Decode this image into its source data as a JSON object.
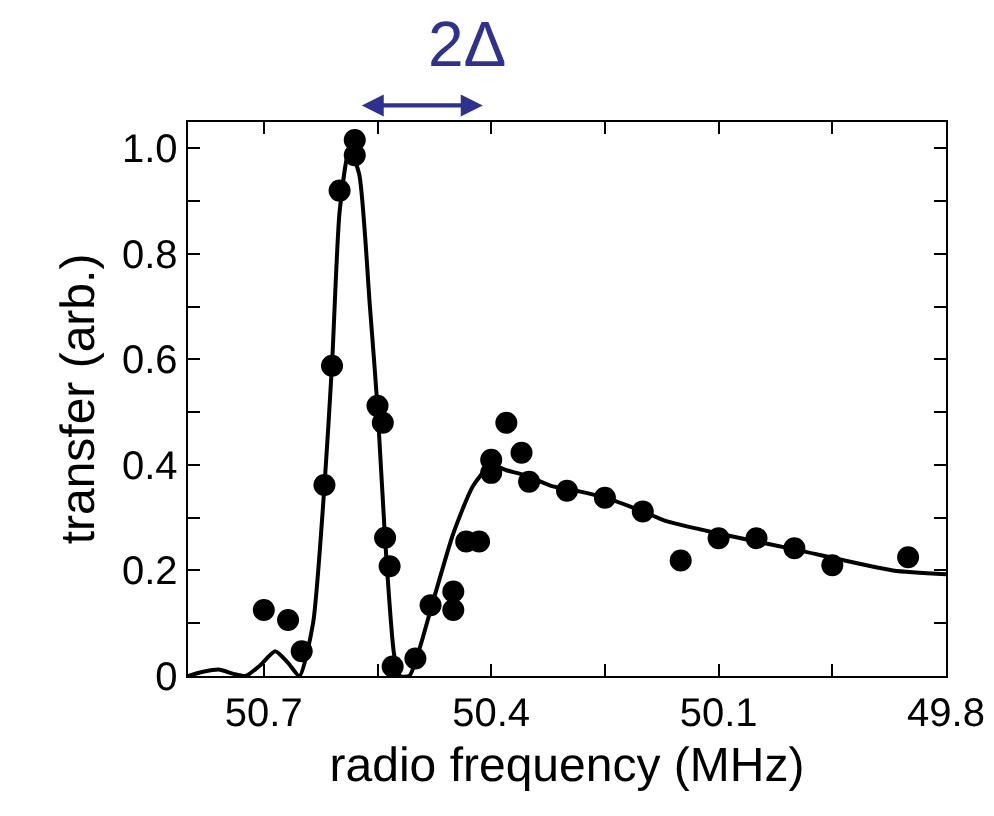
{
  "chart_data": {
    "type": "scatter",
    "xlabel": "radio frequency (MHz)",
    "ylabel": "transfer (arb.)",
    "annotations": [
      "2Δ"
    ],
    "xlim": [
      50.8,
      49.8
    ],
    "xticks": [
      50.7,
      {
        "value": 50.55,
        "label": null
      },
      50.4,
      {
        "value": 50.25,
        "label": null
      },
      50.1,
      {
        "value": 49.95,
        "label": null
      },
      49.8
    ],
    "ylim": [
      0,
      1.05
    ],
    "yticks": [
      0,
      {
        "value": 0.1,
        "label": null
      },
      0.2,
      {
        "value": 0.3,
        "label": null
      },
      0.4,
      {
        "value": 0.5,
        "label": null
      },
      0.6,
      {
        "value": 0.7,
        "label": null
      },
      0.8,
      {
        "value": 0.9,
        "label": null
      },
      {
        "value": 1.0,
        "label": "1.0"
      }
    ],
    "grid": false,
    "series": [
      {
        "color": "#000000",
        "marker": "circle",
        "x": [
          50.7,
          50.668,
          50.65,
          50.62,
          50.61,
          50.6,
          50.58,
          50.58,
          50.55,
          50.543,
          50.54,
          50.534,
          50.53,
          50.5,
          50.48,
          50.45,
          50.45,
          50.433,
          50.416,
          50.4,
          50.4,
          50.38,
          50.36,
          50.35,
          50.3,
          50.25,
          50.2,
          50.15,
          50.1,
          50.05,
          50.0,
          49.95,
          49.85
        ],
        "values": [
          0.125,
          0.106,
          0.047,
          0.362,
          0.588,
          0.92,
          1.016,
          0.987,
          0.512,
          0.48,
          0.262,
          0.208,
          0.018,
          0.033,
          0.134,
          0.16,
          0.125,
          0.255,
          0.255,
          0.41,
          0.385,
          0.48,
          0.423,
          0.368,
          0.351,
          0.338,
          0.312,
          0.219,
          0.261,
          0.261,
          0.242,
          0.21,
          0.225
        ]
      },
      {
        "type": "line",
        "color": "#000000",
        "marker": "none",
        "line_style": "solid",
        "x": [
          50.8,
          50.78,
          50.758,
          50.74,
          50.724,
          50.705,
          50.685,
          50.668,
          50.653,
          50.635,
          50.62,
          50.61,
          50.6,
          50.587,
          50.574,
          50.56,
          50.55,
          50.54,
          50.528,
          50.52,
          50.508,
          50.495,
          50.477,
          50.45,
          50.424,
          50.4,
          50.38,
          50.354,
          50.32,
          50.284,
          50.25,
          50.2,
          50.17,
          50.1,
          50.0,
          49.87,
          49.8
        ],
        "values": [
          0.0,
          0.008,
          0.012,
          0.004,
          0.0,
          0.02,
          0.047,
          0.025,
          0.0,
          0.1,
          0.36,
          0.59,
          0.88,
          1.0,
          0.95,
          0.7,
          0.51,
          0.26,
          0.04,
          0.0,
          0.0,
          0.05,
          0.14,
          0.27,
          0.36,
          0.4,
          0.39,
          0.38,
          0.36,
          0.35,
          0.338,
          0.312,
          0.294,
          0.27,
          0.24,
          0.2,
          0.193
        ]
      }
    ]
  }
}
